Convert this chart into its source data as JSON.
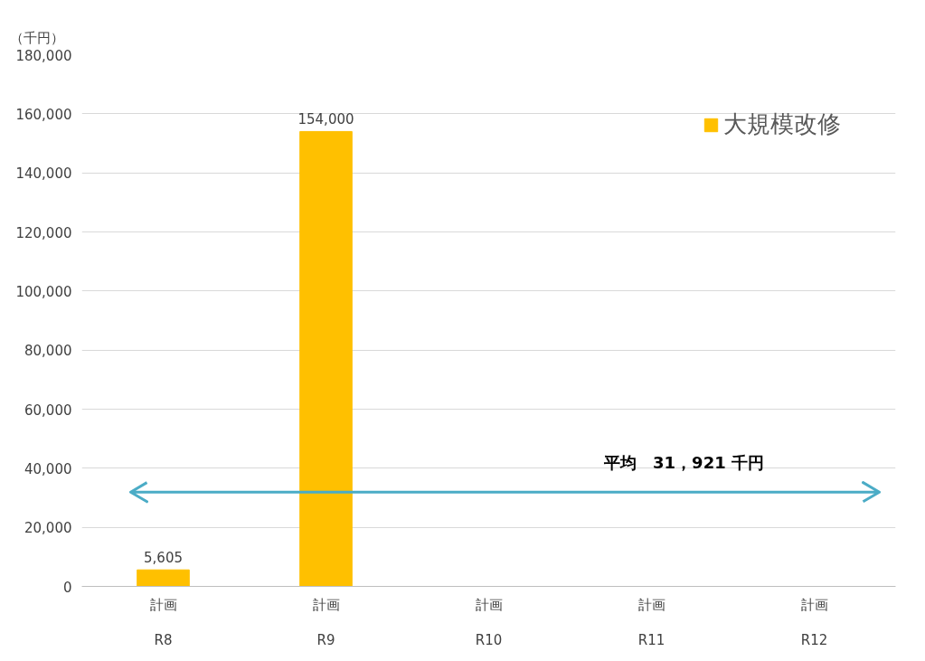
{
  "chart_data": {
    "type": "bar",
    "ylabel": "（千円）",
    "categories": [
      "計画\nR8",
      "計画\nR9",
      "計画\nR10",
      "計画\nR11",
      "計画\nR12"
    ],
    "series": [
      {
        "name": "大規模改修",
        "color": "#ffc000",
        "values": [
          5605,
          154000,
          null,
          null,
          null
        ],
        "value_labels": [
          "5,605",
          "154,000",
          null,
          null,
          null
        ]
      }
    ],
    "ylim": [
      0,
      180000
    ],
    "yticks": [
      {
        "value": 0,
        "label": "0"
      },
      {
        "value": 20000,
        "label": "20,000"
      },
      {
        "value": 40000,
        "label": "40,000"
      },
      {
        "value": 60000,
        "label": "60,000"
      },
      {
        "value": 80000,
        "label": "80,000"
      },
      {
        "value": 100000,
        "label": "100,000"
      },
      {
        "value": 120000,
        "label": "120,000"
      },
      {
        "value": 140000,
        "label": "140,000"
      },
      {
        "value": 160000,
        "label": "160,000"
      },
      {
        "value": 180000,
        "label": "180,000"
      }
    ],
    "ref_lines": [
      {
        "axis": "y",
        "value": 31921,
        "label": "平均　31，921 千円",
        "color": "#4bacc6"
      }
    ],
    "grid": "y",
    "legend": "top right"
  }
}
